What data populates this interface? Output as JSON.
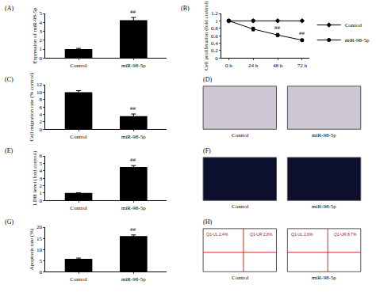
{
  "chart_data": [
    {
      "panel": "(A)",
      "type": "bar",
      "y_label": "Expression of miR-98-5p",
      "categories": [
        "Control",
        "miR-98-5p"
      ],
      "values": [
        1.0,
        4.25
      ],
      "errors": [
        0.08,
        0.3
      ],
      "significance": [
        null,
        "##"
      ],
      "color": "#000000",
      "ylim": [
        0,
        5
      ],
      "yticks": [
        0,
        1,
        2,
        3,
        4,
        5
      ]
    },
    {
      "panel": "(B)",
      "type": "line",
      "y_label": "Cell proliferation (fold control)",
      "categories": [
        "0 h",
        "24 h",
        "48 h",
        "72 h"
      ],
      "series": [
        {
          "name": "Control",
          "color": "#000000",
          "marker": "diamond",
          "values": [
            1.0,
            1.0,
            1.0,
            1.0
          ],
          "errors": [
            0.03,
            0.03,
            0.02,
            0.02
          ],
          "significance": [
            null,
            null,
            null,
            null
          ]
        },
        {
          "name": "miR-98-5p",
          "color": "#000000",
          "marker": "circle",
          "values": [
            1.0,
            0.78,
            0.62,
            0.48
          ],
          "errors": [
            0.03,
            0.05,
            0.04,
            0.03
          ],
          "significance": [
            null,
            null,
            "##",
            "##"
          ]
        }
      ],
      "legend": "right",
      "ylim": [
        0,
        1.2
      ],
      "yticks": [
        0,
        0.2,
        0.4,
        0.6,
        0.8,
        1,
        1.2
      ]
    },
    {
      "panel": "(C)",
      "type": "bar",
      "y_label": "Cell migration rate (% control)",
      "categories": [
        "Control",
        "miR-98-5p"
      ],
      "values": [
        10,
        3.5
      ],
      "errors": [
        0.4,
        0.6
      ],
      "significance": [
        null,
        "##"
      ],
      "color": "#000000",
      "ylim": [
        0,
        12
      ],
      "yticks": [
        0,
        2,
        4,
        6,
        8,
        10,
        12
      ]
    },
    {
      "panel": "(E)",
      "type": "bar",
      "y_label": "LDH level (fold control)",
      "categories": [
        "Control",
        "miR-98-5p"
      ],
      "values": [
        1.0,
        4.5
      ],
      "errors": [
        0.05,
        0.2
      ],
      "significance": [
        null,
        "##"
      ],
      "color": "#000000",
      "ylim": [
        0,
        6
      ],
      "yticks": [
        0,
        1,
        2,
        3,
        4,
        5,
        6
      ]
    },
    {
      "panel": "(G)",
      "type": "bar",
      "y_label": "Apoptosis rate (%)",
      "categories": [
        "Control",
        "miR-98-5p"
      ],
      "values": [
        5.8,
        16
      ],
      "errors": [
        0.3,
        0.5
      ],
      "significance": [
        null,
        "##"
      ],
      "color": "#000000",
      "ylim": [
        0,
        20
      ],
      "yticks": [
        0,
        5,
        10,
        15,
        20
      ]
    }
  ],
  "image_panels": [
    {
      "panel": "(D)",
      "captions": [
        "Control",
        "miR-98-5p"
      ]
    },
    {
      "panel": "(F)",
      "captions": [
        "Control",
        "miR-98-5p"
      ]
    },
    {
      "panel": "(H)",
      "captions": [
        "Control",
        "miR-98-5p"
      ],
      "quadrant_labels": [
        [
          "Q1-UL 2.4%",
          "Q1-UR 2.8%"
        ],
        [
          "Q1-UL 2.6%",
          "Q1-UR 8.7%"
        ]
      ]
    }
  ]
}
